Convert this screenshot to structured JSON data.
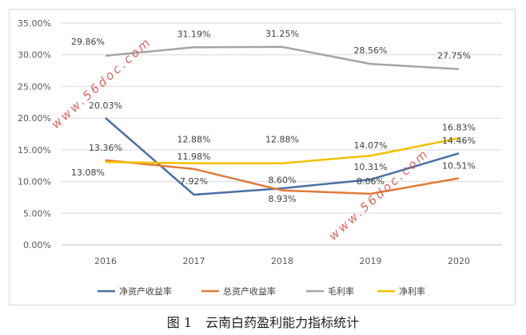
{
  "chart_data": {
    "type": "line",
    "title": "",
    "categories": [
      "2016",
      "2017",
      "2018",
      "2019",
      "2020"
    ],
    "ylim": [
      0,
      35
    ],
    "yticks": [
      "0.00%",
      "5.00%",
      "10.00%",
      "15.00%",
      "20.00%",
      "25.00%",
      "30.00%",
      "35.00%"
    ],
    "ytick_values": [
      0,
      5,
      10,
      15,
      20,
      25,
      30,
      35
    ],
    "grid": true,
    "legend_position": "bottom",
    "series": [
      {
        "name": "净资产收益率",
        "color": "#4a6fa5",
        "values": [
          20.03,
          7.92,
          8.93,
          10.31,
          14.46
        ],
        "labels": [
          "20.03%",
          "7.92%",
          "8.93%",
          "10.31%",
          "14.46%"
        ]
      },
      {
        "name": "总资产收益率",
        "color": "#e07b39",
        "values": [
          13.36,
          11.98,
          8.6,
          8.06,
          10.51
        ],
        "labels": [
          "13.36%",
          "11.98%",
          "8.60%",
          "8.06%",
          "10.51%"
        ]
      },
      {
        "name": "毛利率",
        "color": "#a5a5a5",
        "values": [
          29.86,
          31.19,
          31.25,
          28.56,
          27.75
        ],
        "labels": [
          "29.86%",
          "31.19%",
          "31.25%",
          "28.56%",
          "27.75%"
        ]
      },
      {
        "name": "净利率",
        "color": "#f2c100",
        "values": [
          13.08,
          12.88,
          12.88,
          14.07,
          16.83
        ],
        "labels": [
          "13.08%",
          "12.88%",
          "12.88%",
          "14.07%",
          "16.83%"
        ]
      }
    ]
  },
  "watermarks": [
    "www.56doc.com",
    "www.56doc.com"
  ],
  "caption": {
    "figure": "图 1",
    "text": "云南白药盈利能力指标统计"
  }
}
